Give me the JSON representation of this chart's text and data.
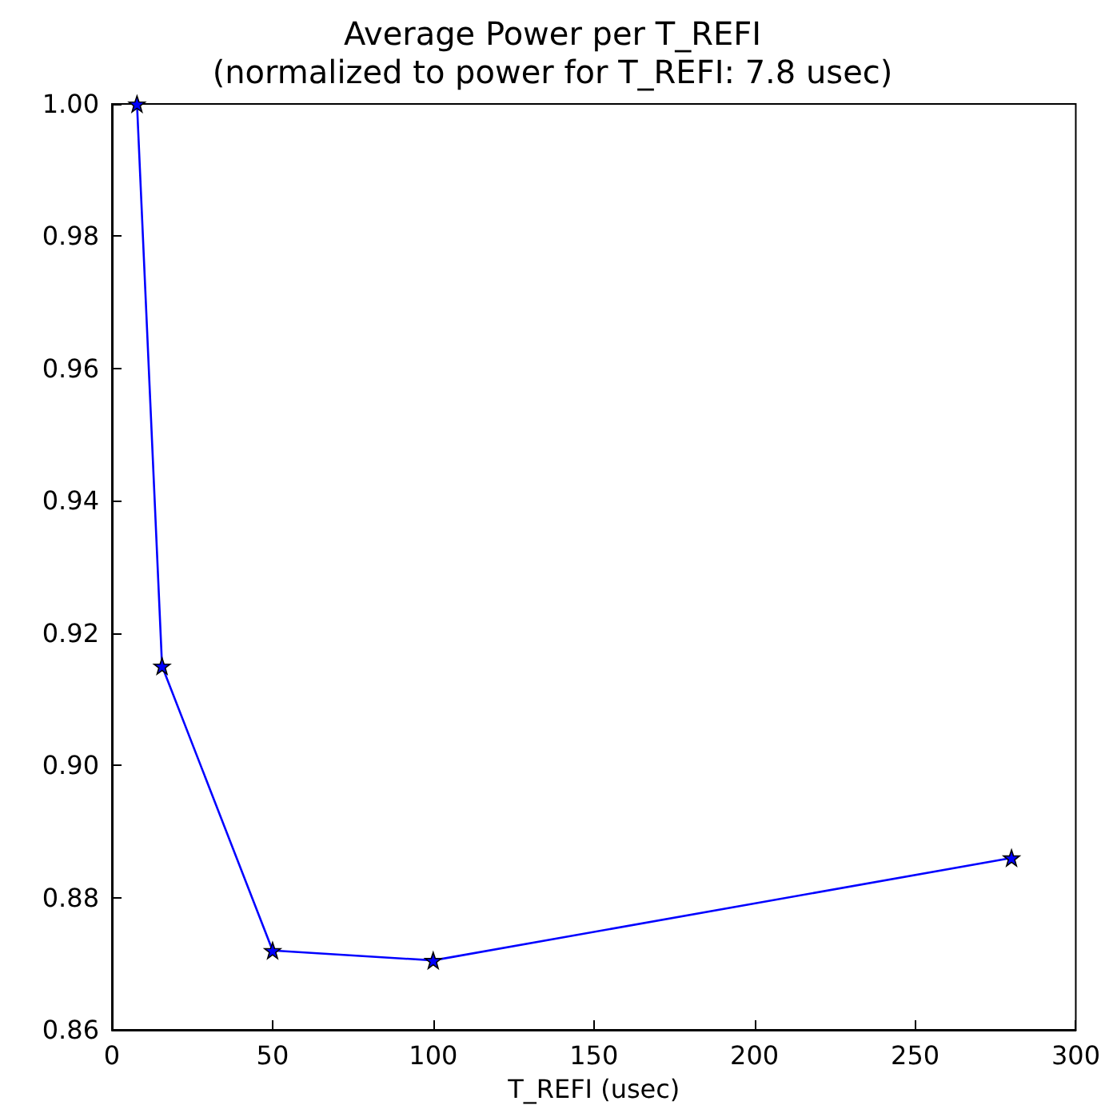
{
  "chart_data": {
    "type": "line",
    "title": "Average Power per T_REFI",
    "subtitle": "(normalized to power for T_REFI: 7.8 usec)",
    "xlabel": "T_REFI (usec)",
    "x": [
      7.8,
      15.6,
      50,
      100,
      280
    ],
    "series": [
      {
        "color": "#0000ff",
        "values": [
          1.0,
          0.915,
          0.872,
          0.8705,
          0.886
        ]
      }
    ],
    "xlim": [
      0,
      300
    ],
    "xticks": [
      0,
      50,
      100,
      150,
      200,
      250,
      300
    ],
    "ylim": [
      0.86,
      1.0
    ],
    "yticks": [
      {
        "value": 0.86,
        "label": "0.86"
      },
      {
        "value": 0.88,
        "label": "0.88"
      },
      {
        "value": 0.9,
        "label": "0.90"
      },
      {
        "value": 0.92,
        "label": "0.92"
      },
      {
        "value": 0.94,
        "label": "0.94"
      },
      {
        "value": 0.96,
        "label": "0.96"
      },
      {
        "value": 0.98,
        "label": "0.98"
      },
      {
        "value": 1.0,
        "label": "1.00"
      }
    ],
    "marker": "star",
    "line_style": "solid",
    "grid": false
  }
}
